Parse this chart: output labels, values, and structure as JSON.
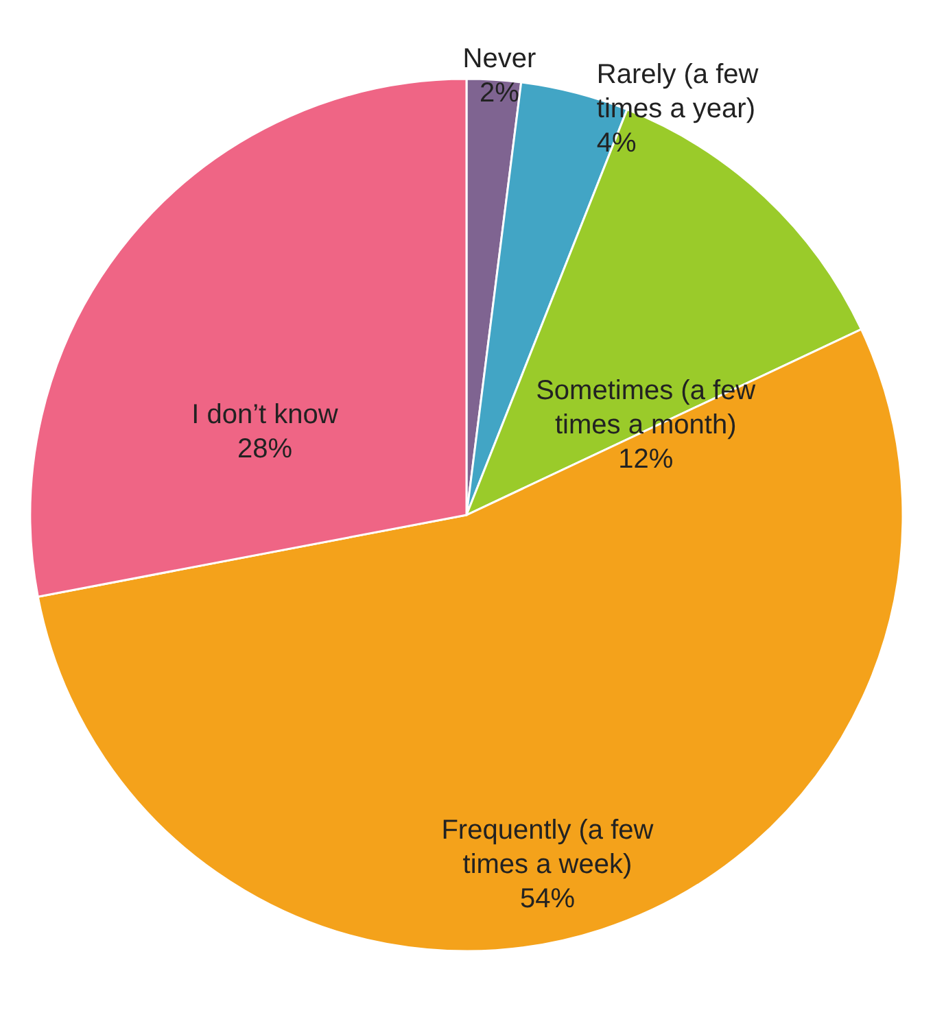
{
  "chart_data": {
    "type": "pie",
    "categories": [
      "Never",
      "Rarely (a few times a year)",
      "Sometimes (a few times a month)",
      "Frequently (a few times a week)",
      "I don’t know"
    ],
    "values": [
      2,
      4,
      12,
      54,
      28
    ],
    "value_labels": [
      "2%",
      "4%",
      "12%",
      "54%",
      "28%"
    ],
    "colors": [
      "#7f6491",
      "#42a5c5",
      "#9acb2a",
      "#f4a21b",
      "#ef6585"
    ]
  }
}
